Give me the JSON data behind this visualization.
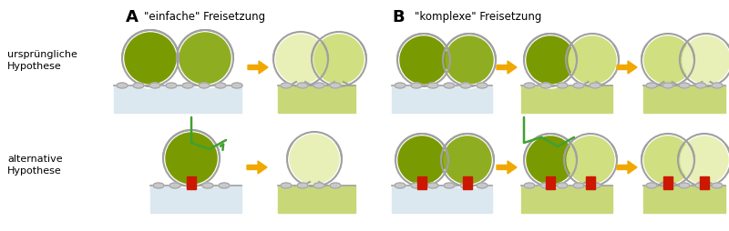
{
  "bg_color": "#ffffff",
  "title_A": "\"einfache\" Freisetzung",
  "title_B": "\"komplexe\" Freisetzung",
  "label_A": "A",
  "label_B": "B",
  "label_urspr": "ursprüngliche\nHypothese",
  "label_alt": "alternative\nHypothese",
  "green_dark": "#7a9a01",
  "green_mid": "#8fad20",
  "green_pale": "#d0df80",
  "green_very_pale": "#e8f0b8",
  "green_base": "#c8d878",
  "green_base_dark": "#a8bc50",
  "gray_mem": "#a0a0a0",
  "gray_light": "#c8c8c8",
  "orange": "#f0a800",
  "green_arrow": "#40a030",
  "red": "#cc1800",
  "white": "#ffffff",
  "light_blue_base": "#dce8f0"
}
